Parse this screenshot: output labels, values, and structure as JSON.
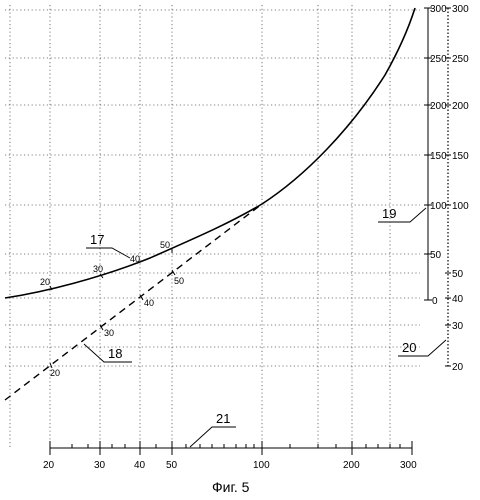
{
  "figure": {
    "caption": "Фиг. 5",
    "refs": {
      "solid_curve": "17",
      "dashed_line": "18",
      "right_axis_19": "19",
      "right_axis_20": "20",
      "bottom_axis": "21"
    }
  },
  "bottom_axis": {
    "labels": [
      "20",
      "30",
      "40",
      "50",
      "100",
      "200",
      "300"
    ]
  },
  "axis19": {
    "labels": [
      "300",
      "250",
      "200",
      "150",
      "100",
      "50",
      "0"
    ]
  },
  "axis20": {
    "labels": [
      "300",
      "250",
      "200",
      "150",
      "100",
      "50",
      "40",
      "30",
      "20"
    ]
  },
  "solid_labels": [
    "20",
    "30",
    "40",
    "50"
  ],
  "dashed_labels": [
    "50",
    "40",
    "30",
    "20"
  ]
}
